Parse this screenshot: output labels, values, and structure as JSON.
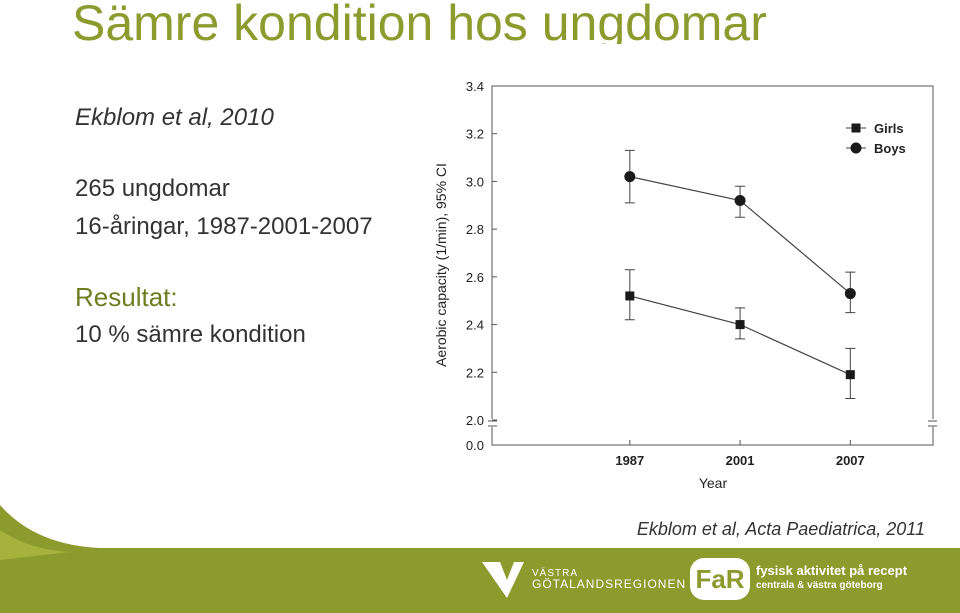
{
  "slide": {
    "title": "Sämre kondition hos ungdomar",
    "reference": "Ekblom et al, 2010",
    "lines": [
      "265 ungdomar",
      "16-åringar, 1987-2001-2007"
    ],
    "result_heading": "Resultat:",
    "result": "10 % sämre kondition",
    "citation": "Ekblom et al, Acta Paediatrica, 2011",
    "footer": {
      "region_logo": [
        "VÄSTRA",
        "GÖTALANDSREGIONEN"
      ],
      "far_logo": "FaR",
      "far_title": "fysisk aktivitet på recept",
      "far_subtitle": "centrala & västra göteborg"
    }
  },
  "chart_data": {
    "type": "line",
    "x_label": "Year",
    "y_label": "Aerobic capacity (1/min), 95% CI",
    "categories": [
      "1987",
      "2001",
      "2007"
    ],
    "series": [
      {
        "name": "Girls",
        "marker": "square",
        "color": "#1a1a1a",
        "values": [
          2.52,
          2.4,
          2.19
        ],
        "ci_low": [
          2.42,
          2.34,
          2.09
        ],
        "ci_high": [
          2.63,
          2.47,
          2.3
        ]
      },
      {
        "name": "Boys",
        "marker": "circle",
        "color": "#1a1a1a",
        "values": [
          3.02,
          2.92,
          2.53
        ],
        "ci_low": [
          2.91,
          2.85,
          2.45
        ],
        "ci_high": [
          3.13,
          2.98,
          2.62
        ]
      }
    ],
    "ylim": [
      0,
      3.4
    ],
    "ybreak": [
      0,
      2
    ],
    "yticks": [
      {
        "value": 0,
        "label": "0.0"
      },
      {
        "value": 2,
        "label": "2.0"
      },
      2.2,
      2.4,
      2.6,
      2.8,
      {
        "value": 3,
        "label": "3.0"
      },
      3.2,
      3.4
    ],
    "legend": "upper right",
    "grid": false
  }
}
